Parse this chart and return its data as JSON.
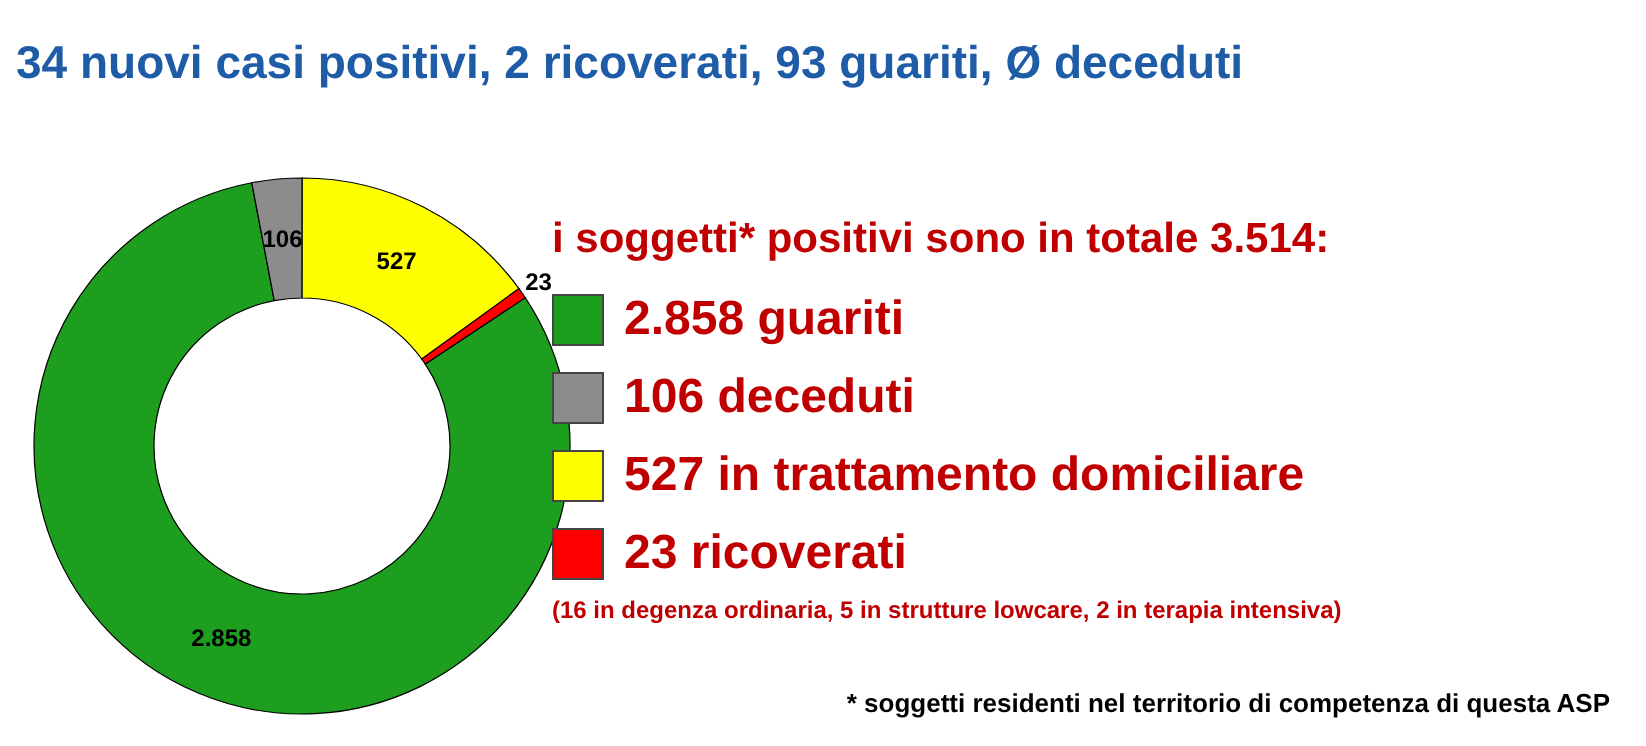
{
  "chart_data": {
    "type": "donut",
    "title": "34 nuovi casi positivi, 2 ricoverati, 93 guariti, Ø deceduti",
    "legend_title": "i soggetti* positivi sono in totale 3.514:",
    "categories": [
      "guariti",
      "deceduti",
      "in trattamento domiciliare",
      "ricoverati"
    ],
    "values": [
      2858,
      106,
      527,
      23
    ],
    "colors": [
      "#1e9e1e",
      "#8c8c8c",
      "#ffff00",
      "#ff0000"
    ],
    "value_labels": [
      "2.858",
      "106",
      "527",
      "23"
    ],
    "legend": "right",
    "annotations": [
      "(16 in degenza ordinaria, 5 in strutture lowcare, 2 in terapia intensiva)",
      "* soggetti residenti nel territorio di competenza di questa ASP"
    ]
  }
}
